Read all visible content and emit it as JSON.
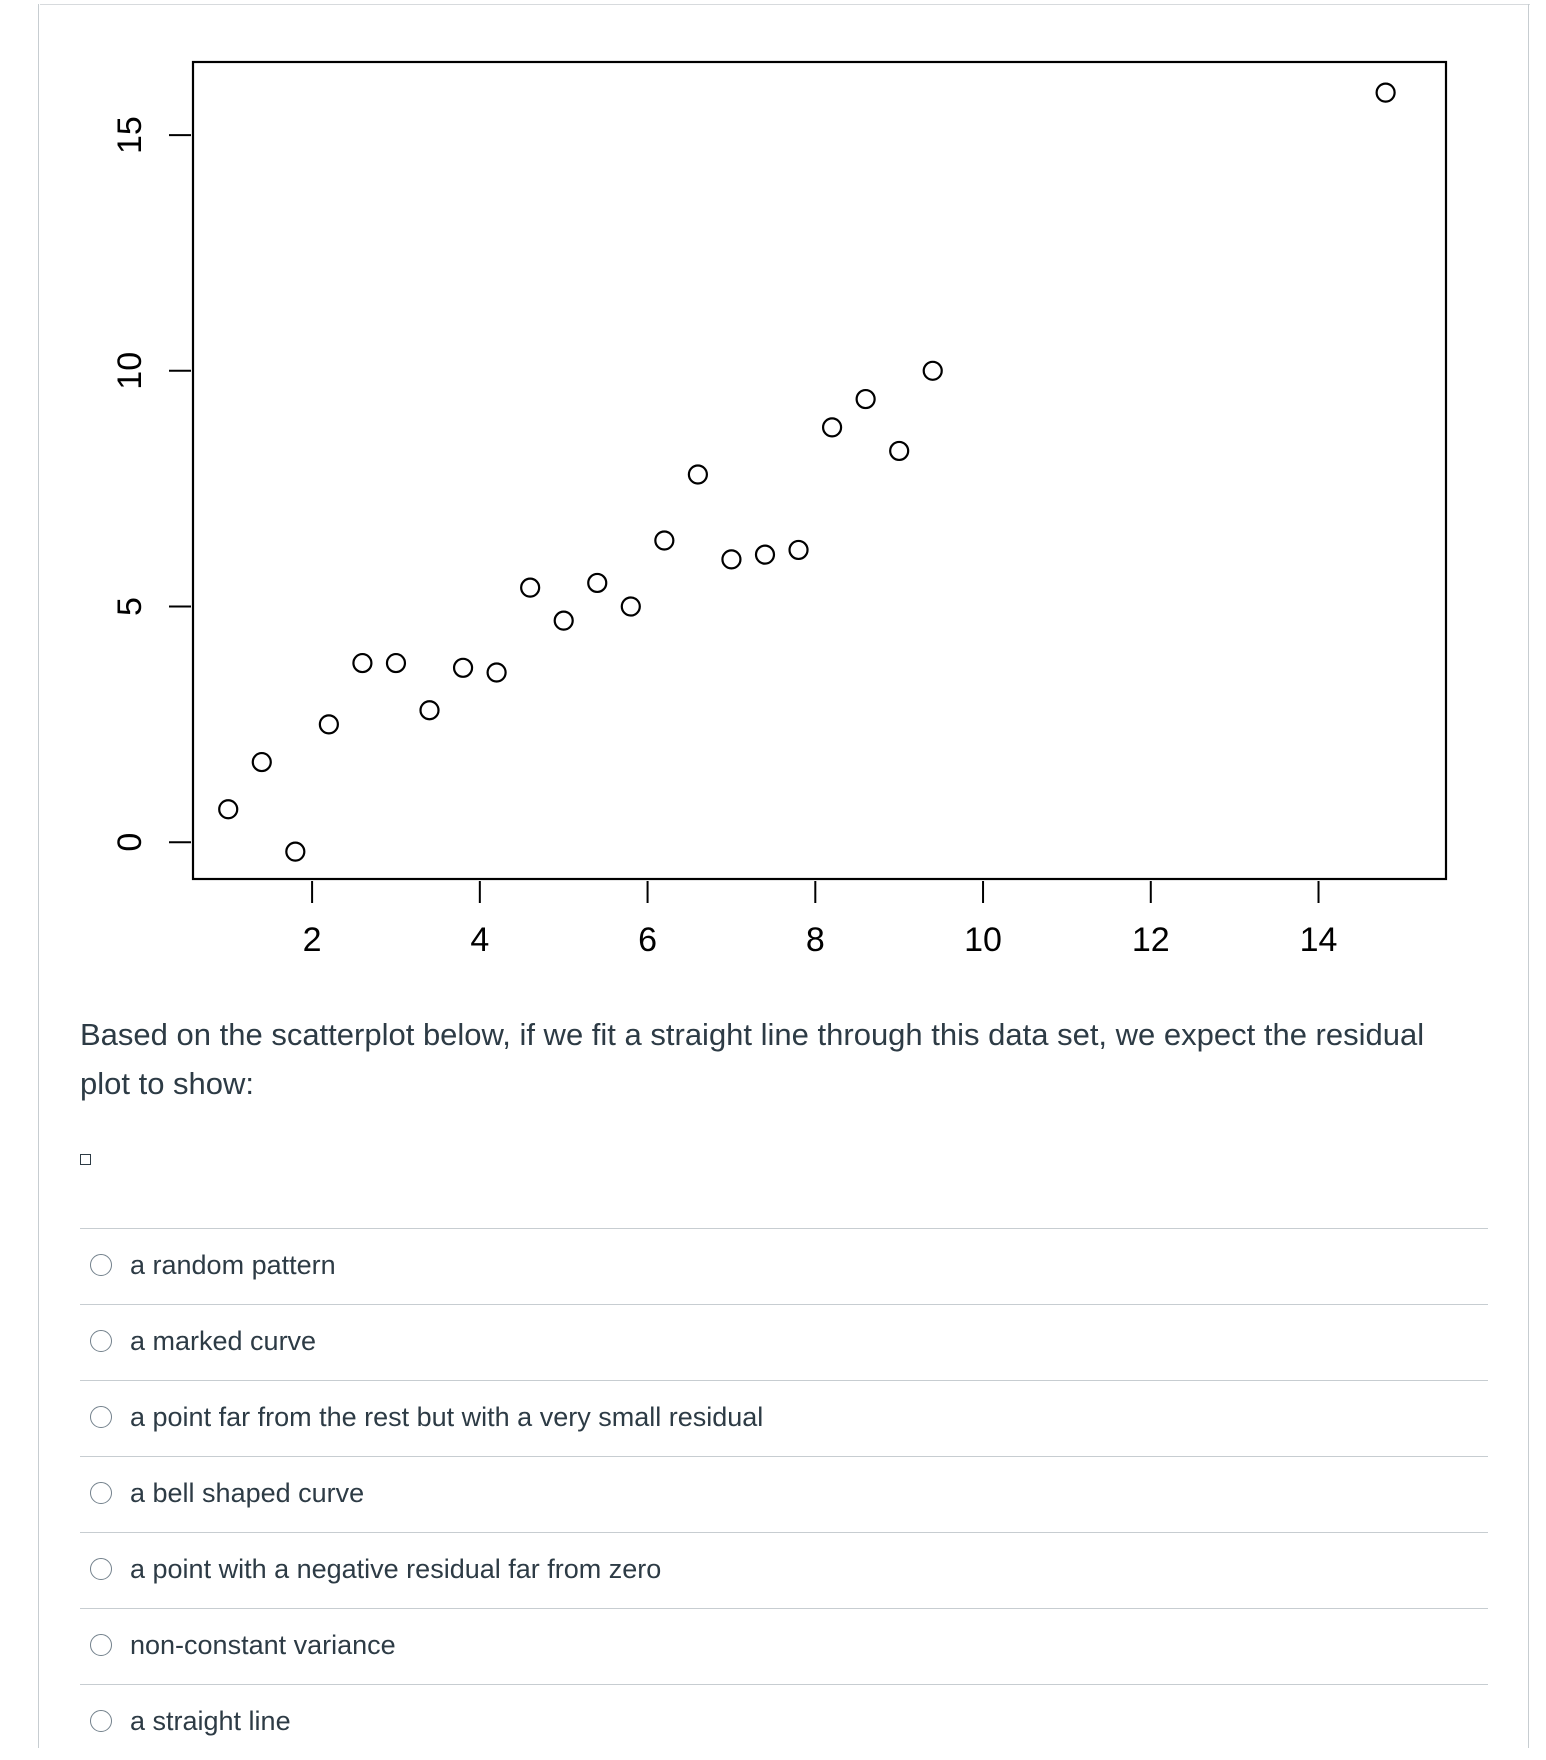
{
  "chart_data": {
    "type": "scatter",
    "x_ticks": [
      2,
      4,
      6,
      8,
      10,
      12,
      14
    ],
    "y_ticks": [
      0,
      5,
      10,
      15
    ],
    "xlim": [
      0.58,
      15.52
    ],
    "ylim": [
      -0.78,
      16.55
    ],
    "marker": "open-circle",
    "points": [
      {
        "x": 1.0,
        "y": 0.7
      },
      {
        "x": 1.4,
        "y": 1.7
      },
      {
        "x": 1.8,
        "y": -0.2
      },
      {
        "x": 2.2,
        "y": 2.5
      },
      {
        "x": 2.6,
        "y": 3.8
      },
      {
        "x": 3.0,
        "y": 3.8
      },
      {
        "x": 3.4,
        "y": 2.8
      },
      {
        "x": 3.8,
        "y": 3.7
      },
      {
        "x": 4.2,
        "y": 3.6
      },
      {
        "x": 4.6,
        "y": 5.4
      },
      {
        "x": 5.0,
        "y": 4.7
      },
      {
        "x": 5.4,
        "y": 5.5
      },
      {
        "x": 5.8,
        "y": 5.0
      },
      {
        "x": 6.2,
        "y": 6.4
      },
      {
        "x": 6.6,
        "y": 7.8
      },
      {
        "x": 7.0,
        "y": 6.0
      },
      {
        "x": 7.4,
        "y": 6.1
      },
      {
        "x": 7.8,
        "y": 6.2
      },
      {
        "x": 8.2,
        "y": 8.8
      },
      {
        "x": 8.6,
        "y": 9.4
      },
      {
        "x": 9.0,
        "y": 8.3
      },
      {
        "x": 9.4,
        "y": 10.0
      },
      {
        "x": 14.8,
        "y": 15.9
      }
    ],
    "grid": false,
    "box": true
  },
  "question": {
    "text": "Based on the scatterplot below, if we fit a straight line through this data set, we expect the residual plot to show:"
  },
  "answers": [
    {
      "label": "a random pattern"
    },
    {
      "label": "a marked curve"
    },
    {
      "label": "a point far from the rest but with a very small residual"
    },
    {
      "label": "a bell shaped curve"
    },
    {
      "label": "a point with a negative residual far from zero"
    },
    {
      "label": "non-constant variance"
    },
    {
      "label": "a straight line"
    }
  ]
}
